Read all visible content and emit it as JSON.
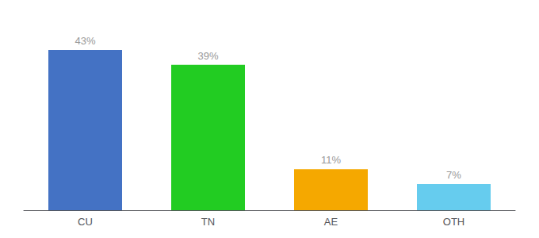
{
  "chart_data": {
    "type": "bar",
    "categories": [
      "CU",
      "TN",
      "AE",
      "OTH"
    ],
    "values": [
      43,
      39,
      11,
      7
    ],
    "value_labels": [
      "43%",
      "39%",
      "11%",
      "7%"
    ],
    "colors": [
      "#4472c4",
      "#22cc22",
      "#f5a800",
      "#66ccee"
    ],
    "ylim": [
      0,
      50
    ],
    "grid": false,
    "data_labels": true,
    "tick_labels": "x"
  }
}
